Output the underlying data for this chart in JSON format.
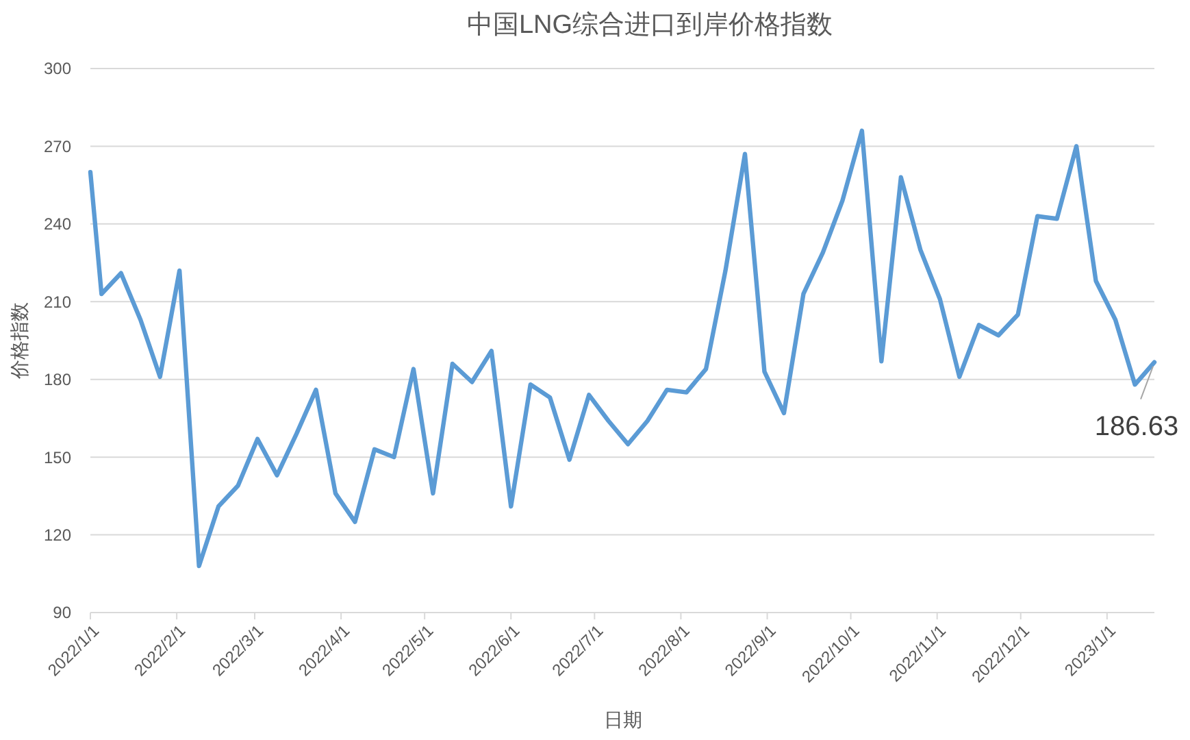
{
  "chart_data": {
    "type": "line",
    "title": "中国LNG综合进口到岸价格指数",
    "xlabel": "日期",
    "ylabel": "价格指数",
    "x": [
      "2022-01-01",
      "2022-01-05",
      "2022-01-12",
      "2022-01-19",
      "2022-01-26",
      "2022-02-02",
      "2022-02-09",
      "2022-02-16",
      "2022-02-23",
      "2022-03-02",
      "2022-03-09",
      "2022-03-16",
      "2022-03-23",
      "2022-03-30",
      "2022-04-06",
      "2022-04-13",
      "2022-04-20",
      "2022-04-27",
      "2022-05-04",
      "2022-05-11",
      "2022-05-18",
      "2022-05-25",
      "2022-06-01",
      "2022-06-08",
      "2022-06-15",
      "2022-06-22",
      "2022-06-29",
      "2022-07-06",
      "2022-07-13",
      "2022-07-20",
      "2022-07-27",
      "2022-08-03",
      "2022-08-10",
      "2022-08-17",
      "2022-08-24",
      "2022-08-31",
      "2022-09-07",
      "2022-09-14",
      "2022-09-21",
      "2022-09-28",
      "2022-10-05",
      "2022-10-12",
      "2022-10-19",
      "2022-10-26",
      "2022-11-02",
      "2022-11-09",
      "2022-11-16",
      "2022-11-23",
      "2022-11-30",
      "2022-12-07",
      "2022-12-14",
      "2022-12-21",
      "2022-12-28",
      "2023-01-04",
      "2023-01-11",
      "2023-01-18"
    ],
    "series": [
      {
        "color": "#5b9bd5",
        "values": [
          260,
          213,
          221,
          203,
          181,
          222,
          108,
          131,
          139,
          157,
          143,
          159,
          176,
          136,
          125,
          153,
          150,
          184,
          136,
          186,
          179,
          191,
          131,
          178,
          173,
          149,
          174,
          164,
          155,
          164,
          176,
          175,
          184,
          222,
          267,
          183,
          167,
          213,
          229,
          249,
          276,
          187,
          258,
          230,
          211,
          181,
          201,
          197,
          205,
          243,
          242,
          270,
          218,
          203,
          178,
          186.63
        ]
      }
    ],
    "xlim": [
      "2022-01-01",
      "2023-01-18"
    ],
    "xticks": [
      {
        "value": "2022-01-01",
        "label": "2022/1/1"
      },
      {
        "value": "2022-02-01",
        "label": "2022/2/1"
      },
      {
        "value": "2022-03-01",
        "label": "2022/3/1"
      },
      {
        "value": "2022-04-01",
        "label": "2022/4/1"
      },
      {
        "value": "2022-05-01",
        "label": "2022/5/1"
      },
      {
        "value": "2022-06-01",
        "label": "2022/6/1"
      },
      {
        "value": "2022-07-01",
        "label": "2022/7/1"
      },
      {
        "value": "2022-08-01",
        "label": "2022/8/1"
      },
      {
        "value": "2022-09-01",
        "label": "2022/9/1"
      },
      {
        "value": "2022-10-01",
        "label": "2022/10/1"
      },
      {
        "value": "2022-11-01",
        "label": "2022/11/1"
      },
      {
        "value": "2022-12-01",
        "label": "2022/12/1"
      },
      {
        "value": "2023-01-01",
        "label": "2023/1/1"
      }
    ],
    "ylim": [
      90,
      300
    ],
    "yticks": [
      90,
      120,
      150,
      180,
      210,
      240,
      270,
      300
    ],
    "grid": "y",
    "annotations": [
      {
        "text": "186.63",
        "x": "2023-01-18",
        "y": 186.63
      }
    ]
  }
}
